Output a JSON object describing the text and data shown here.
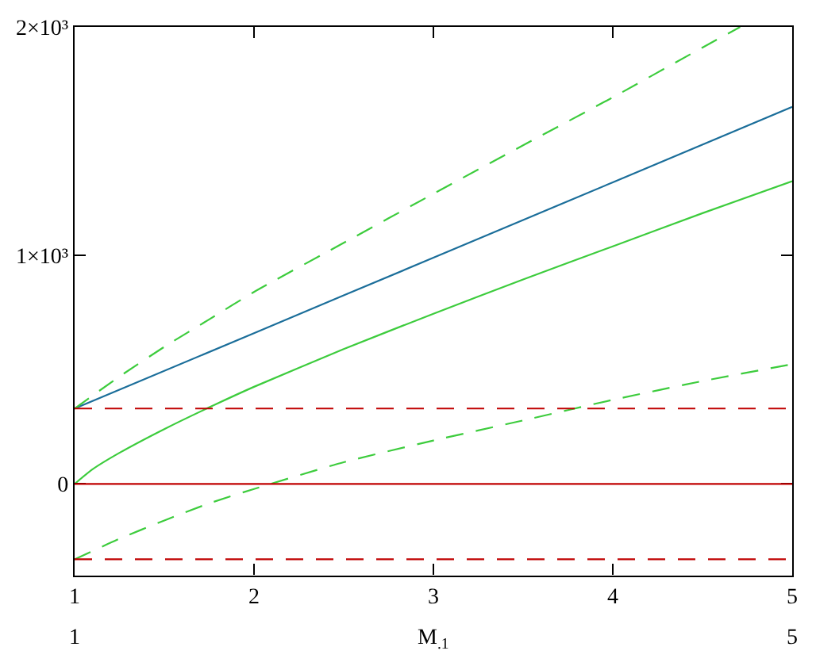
{
  "chart_data": {
    "type": "line",
    "xlabel": "M$_{.1}$",
    "line_style": "solid",
    "series": [
      {
        "color": "#1b6e9a",
        "x": [
          1,
          2,
          3,
          4,
          5
        ],
        "values": [
          330,
          660,
          990,
          1320,
          1650
        ]
      },
      {
        "color": "#3dcc3d",
        "x": [
          1,
          1.1,
          1.25,
          1.5,
          1.75,
          2,
          2.5,
          3,
          3.5,
          4,
          4.5,
          5
        ],
        "values": [
          0,
          64,
          136,
          240,
          335,
          425,
          590,
          745,
          895,
          1040,
          1185,
          1325
        ]
      },
      {
        "color": "#3dcc3d",
        "line_style": "dashed",
        "x": [
          1,
          1.25,
          1.5,
          1.75,
          2,
          2.5,
          3,
          3.5,
          4,
          4.5,
          4.71
        ],
        "values": [
          330,
          470,
          600,
          720,
          840,
          1055,
          1270,
          1482,
          1692,
          1910,
          2000
        ]
      },
      {
        "color": "#3dcc3d",
        "line_style": "dashed",
        "x": [
          1,
          1.25,
          1.5,
          1.75,
          2,
          2.5,
          3,
          3.5,
          4,
          4.5,
          5
        ],
        "values": [
          -330,
          -240,
          -160,
          -85,
          -22,
          95,
          190,
          278,
          368,
          450,
          524
        ]
      }
    ],
    "ref_lines": [
      {
        "axis": "y",
        "value": 330,
        "color": "#c00000",
        "line_style": "dashed"
      },
      {
        "axis": "y",
        "value": 0,
        "color": "#c00000",
        "line_style": "solid"
      },
      {
        "axis": "y",
        "value": -330,
        "color": "#c00000",
        "line_style": "dashed"
      }
    ],
    "xlim": [
      1,
      5
    ],
    "xticks": [
      1,
      2,
      3,
      4,
      5
    ],
    "ylim": [
      -400,
      2000
    ],
    "yticks": [
      0,
      {
        "value": 1000,
        "label": "1×10³"
      },
      {
        "value": 2000,
        "label": "2×10³"
      }
    ],
    "x2lim": [
      1,
      5
    ],
    "x2ticks": [
      1,
      5
    ]
  }
}
